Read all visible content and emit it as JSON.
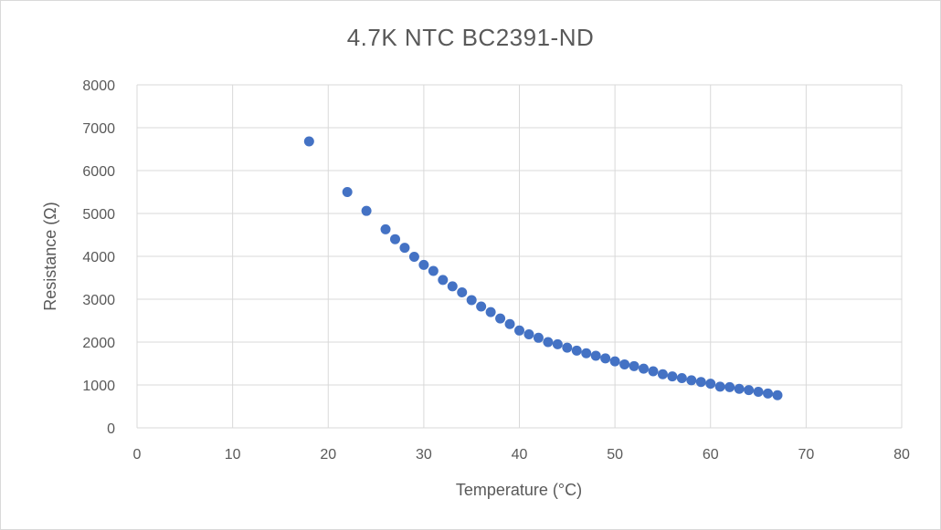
{
  "chart_data": {
    "type": "scatter",
    "title": "4.7K NTC  BC2391-ND",
    "xlabel": "Temperature (°C)",
    "ylabel": "Resistance (Ω)",
    "xlim": [
      0,
      80
    ],
    "ylim": [
      0,
      8000
    ],
    "x_ticks": [
      0,
      10,
      20,
      30,
      40,
      50,
      60,
      70,
      80
    ],
    "y_ticks": [
      0,
      1000,
      2000,
      3000,
      4000,
      5000,
      6000,
      7000,
      8000
    ],
    "grid": true,
    "legend": "none",
    "marker_color": "#4472c4",
    "series": [
      {
        "x": [
          18,
          22,
          24,
          26,
          27,
          28,
          29,
          30,
          31,
          32,
          33,
          34,
          35,
          36,
          37,
          38,
          39,
          40,
          41,
          42,
          43,
          44,
          45,
          46,
          47,
          48,
          49,
          50,
          51,
          52,
          53,
          54,
          55,
          56,
          57,
          58,
          59,
          60,
          61,
          62,
          63,
          64,
          65,
          66,
          67
        ],
        "y": [
          6680,
          5500,
          5060,
          4630,
          4400,
          4200,
          3990,
          3800,
          3660,
          3450,
          3300,
          3160,
          2980,
          2830,
          2700,
          2550,
          2420,
          2270,
          2180,
          2100,
          2000,
          1950,
          1870,
          1800,
          1740,
          1680,
          1620,
          1550,
          1480,
          1440,
          1380,
          1320,
          1250,
          1200,
          1160,
          1110,
          1070,
          1030,
          960,
          950,
          910,
          880,
          840,
          800,
          760
        ]
      }
    ]
  }
}
